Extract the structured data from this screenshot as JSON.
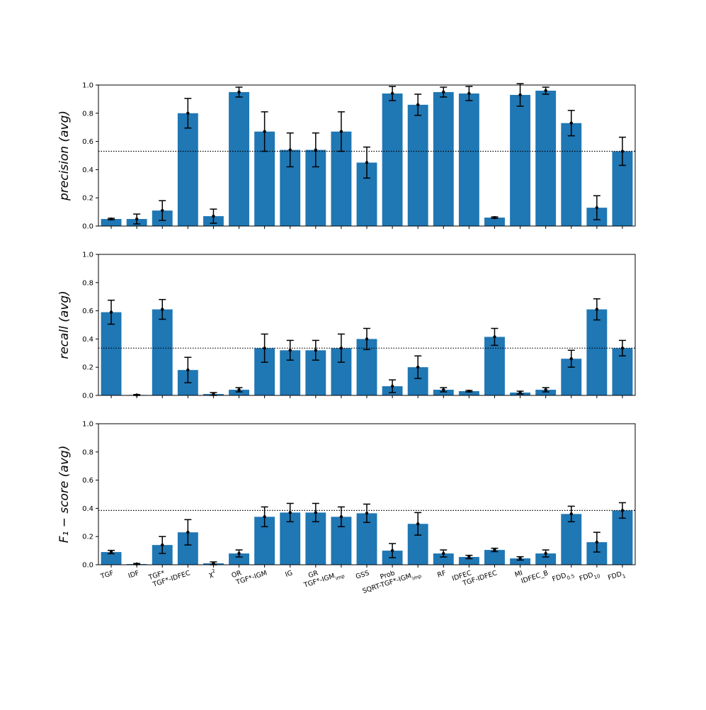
{
  "chart_data": {
    "type": "bar",
    "categories": [
      "TGF",
      "IDF",
      "TGF*",
      "TGF*-IDFEC",
      "χ²",
      "OR",
      "TGF*-IGM",
      "IG",
      "GR",
      "TGF*-IGMimp",
      "GSS",
      "Prob",
      "SQRT-TGF*-IGMimp",
      "RF",
      "IDFEC",
      "TGF-IDFEC",
      "MI",
      "IDFEC_B",
      "FDD0.5",
      "FDD10",
      "FDD1"
    ],
    "category_labels": [
      {
        "main": "TGF",
        "sub": ""
      },
      {
        "main": "IDF",
        "sub": ""
      },
      {
        "main": "TGF*",
        "sub": ""
      },
      {
        "main": "TGF*-IDFEC",
        "sub": ""
      },
      {
        "main": "χ",
        "sup": "2"
      },
      {
        "main": "OR",
        "sub": ""
      },
      {
        "main": "TGF*-IGM",
        "sub": ""
      },
      {
        "main": "IG",
        "sub": ""
      },
      {
        "main": "GR",
        "sub": ""
      },
      {
        "main": "TGF*-IGM",
        "sub": "imp"
      },
      {
        "main": "GSS",
        "sub": ""
      },
      {
        "main": "Prob",
        "sub": ""
      },
      {
        "main": "SQRT-TGF*-IGM",
        "sub": "imp"
      },
      {
        "main": "RF",
        "sub": ""
      },
      {
        "main": "IDFEC",
        "sub": ""
      },
      {
        "main": "TGF-IDFEC",
        "sub": ""
      },
      {
        "main": "MI",
        "sub": ""
      },
      {
        "main": "IDFEC_B",
        "sub": ""
      },
      {
        "main": "FDD",
        "sub": "0.5"
      },
      {
        "main": "FDD",
        "sub": "10"
      },
      {
        "main": "FDD",
        "sub": "1"
      }
    ],
    "bar_color": "#1f77b4",
    "error_color": "#000000",
    "reference_line_style": "dotted",
    "grid": false,
    "legend": "none",
    "panels": [
      {
        "ylabel": "precision (avg)",
        "ylim": [
          0,
          1.0
        ],
        "yticks": [
          "0.0",
          "0.2",
          "0.4",
          "0.6",
          "0.8",
          "1.0"
        ],
        "values": [
          0.05,
          0.05,
          0.11,
          0.8,
          0.07,
          0.95,
          0.67,
          0.54,
          0.54,
          0.67,
          0.45,
          0.94,
          0.86,
          0.95,
          0.94,
          0.06,
          0.93,
          0.96,
          0.73,
          0.13,
          0.53
        ],
        "errors": [
          0.005,
          0.035,
          0.07,
          0.105,
          0.05,
          0.035,
          0.14,
          0.12,
          0.12,
          0.14,
          0.11,
          0.05,
          0.075,
          0.035,
          0.05,
          0.005,
          0.08,
          0.025,
          0.09,
          0.085,
          0.1
        ],
        "reference": 0.53
      },
      {
        "ylabel": "recall (avg)",
        "ylim": [
          0,
          1.0
        ],
        "yticks": [
          "0.0",
          "0.2",
          "0.4",
          "0.6",
          "0.8",
          "1.0"
        ],
        "values": [
          0.59,
          0.003,
          0.61,
          0.18,
          0.01,
          0.04,
          0.335,
          0.32,
          0.32,
          0.335,
          0.4,
          0.065,
          0.2,
          0.04,
          0.03,
          0.415,
          0.02,
          0.04,
          0.26,
          0.61,
          0.335
        ],
        "errors": [
          0.085,
          0.003,
          0.07,
          0.09,
          0.01,
          0.015,
          0.1,
          0.07,
          0.07,
          0.1,
          0.075,
          0.045,
          0.08,
          0.015,
          0.005,
          0.06,
          0.01,
          0.015,
          0.06,
          0.075,
          0.055
        ],
        "reference": 0.335
      },
      {
        "ylabel": "F₁ − score (avg)",
        "ylim": [
          0,
          1.0
        ],
        "yticks": [
          "0.0",
          "0.2",
          "0.4",
          "0.6",
          "0.8",
          "1.0"
        ],
        "values": [
          0.09,
          0.005,
          0.14,
          0.23,
          0.01,
          0.08,
          0.34,
          0.37,
          0.37,
          0.34,
          0.365,
          0.1,
          0.29,
          0.08,
          0.055,
          0.105,
          0.045,
          0.08,
          0.36,
          0.16,
          0.385
        ],
        "errors": [
          0.012,
          0.004,
          0.06,
          0.09,
          0.01,
          0.025,
          0.07,
          0.065,
          0.065,
          0.07,
          0.065,
          0.05,
          0.08,
          0.025,
          0.012,
          0.012,
          0.012,
          0.025,
          0.055,
          0.07,
          0.055
        ],
        "reference": 0.385
      }
    ]
  }
}
